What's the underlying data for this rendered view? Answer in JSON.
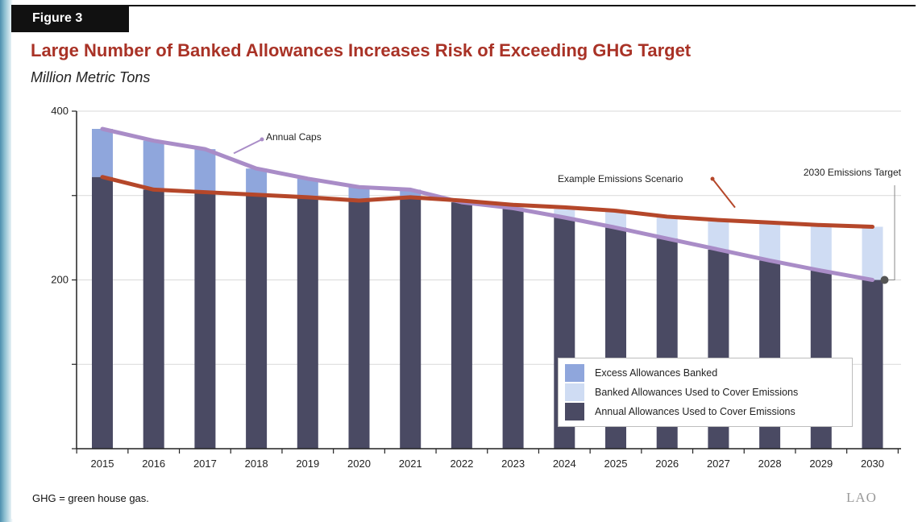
{
  "figure": {
    "label": "Figure 3",
    "title": "Large Number of Banked Allowances Increases Risk of Exceeding GHG Target",
    "subtitle": "Million Metric Tons",
    "footnote": "GHG = green house gas.",
    "logo": "LAO"
  },
  "colors": {
    "annual_allowances": "#4a4a63",
    "excess_banked": "#8fa6dc",
    "banked_used": "#cfdcf3",
    "annual_caps_line": "#a98cc7",
    "emissions_line": "#b5472a",
    "title": "#a93226"
  },
  "chart_data": {
    "type": "bar",
    "categories": [
      "2015",
      "2016",
      "2017",
      "2018",
      "2019",
      "2020",
      "2021",
      "2022",
      "2023",
      "2024",
      "2025",
      "2026",
      "2027",
      "2028",
      "2029",
      "2030"
    ],
    "ylim": [
      0,
      400
    ],
    "yticks": [
      200,
      400
    ],
    "grid": true,
    "series": [
      {
        "name": "Annual Allowances Used to Cover Emissions",
        "kind": "stack",
        "values": [
          322,
          307,
          304,
          301,
          298,
          294,
          298,
          292,
          285,
          274,
          262,
          249,
          236,
          223,
          211,
          200
        ]
      },
      {
        "name": "Excess Allowances Banked",
        "kind": "stack",
        "values": [
          57,
          58,
          51,
          31,
          22,
          16,
          9,
          0,
          0,
          0,
          0,
          0,
          0,
          0,
          0,
          0
        ]
      },
      {
        "name": "Banked Allowances Used to Cover Emissions",
        "kind": "stack",
        "values": [
          0,
          0,
          0,
          0,
          0,
          0,
          0,
          0,
          4,
          10,
          20,
          26,
          35,
          44,
          54,
          63
        ]
      },
      {
        "name": "Annual Caps",
        "kind": "line",
        "values": [
          379,
          365,
          355,
          332,
          320,
          310,
          307,
          292,
          285,
          274,
          262,
          249,
          236,
          223,
          211,
          200
        ]
      },
      {
        "name": "Example Emissions Scenario",
        "kind": "line",
        "values": [
          322,
          307,
          304,
          301,
          298,
          294,
          298,
          294,
          289,
          286,
          282,
          275,
          271,
          268,
          265,
          263
        ]
      }
    ],
    "annotations": [
      "Annual Caps",
      "Example Emissions Scenario",
      "2030 Emissions Target"
    ],
    "legend": {
      "placement": "bottom-right",
      "items": [
        "Excess Allowances Banked",
        "Banked Allowances Used to Cover Emissions",
        "Annual Allowances Used to Cover Emissions"
      ]
    }
  }
}
